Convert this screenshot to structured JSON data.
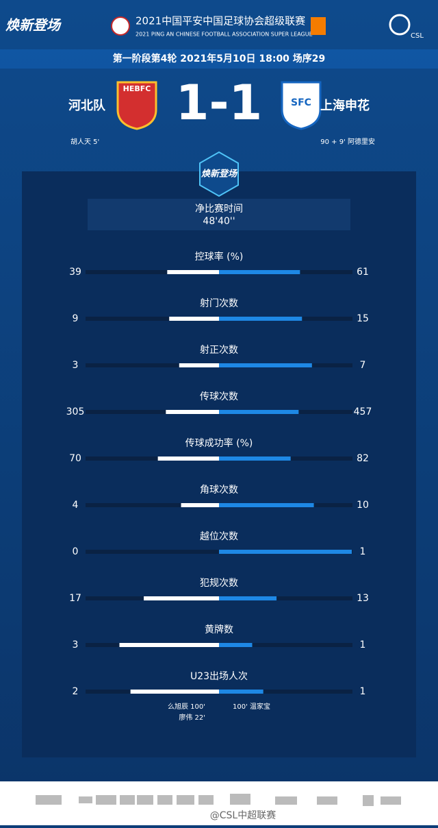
{
  "header": {
    "brand": "焕新登场",
    "title_cn": "2021中国平安中国足球协会超级联赛",
    "title_en": "2021 PING AN CHINESE FOOTBALL ASSOCIATION SUPER LEAGUE",
    "league": "CSL"
  },
  "match": {
    "info": "第一阶段第4轮 2021年5月10日 18:00 场序29",
    "score": "1-1",
    "home": {
      "name": "河北队",
      "logo": "HEBFC",
      "scorer": "胡人天 5'"
    },
    "away": {
      "name": "上海申花",
      "logo": "SFC",
      "scorer": "90 + 9' 阿德里安"
    }
  },
  "playing_time": {
    "label": "净比赛时间",
    "value": "48'40''"
  },
  "stats": [
    {
      "label": "控球率 (%)",
      "home": 39,
      "away": 61
    },
    {
      "label": "射门次数",
      "home": 9,
      "away": 15
    },
    {
      "label": "射正次数",
      "home": 3,
      "away": 7
    },
    {
      "label": "传球次数",
      "home": 305,
      "away": 457
    },
    {
      "label": "传球成功率 (%)",
      "home": 70,
      "away": 82
    },
    {
      "label": "角球次数",
      "home": 4,
      "away": 10
    },
    {
      "label": "越位次数",
      "home": 0,
      "away": 1
    },
    {
      "label": "犯规次数",
      "home": 17,
      "away": 13
    },
    {
      "label": "黄牌数",
      "home": 3,
      "away": 1
    },
    {
      "label": "U23出场人次",
      "home": 2,
      "away": 1
    }
  ],
  "u23_notes": {
    "home": [
      "么旭辰 100'",
      "廖伟 22'"
    ],
    "away": [
      "100' 温家宝"
    ]
  },
  "footer": {
    "watermark": "@CSL中超联赛"
  }
}
